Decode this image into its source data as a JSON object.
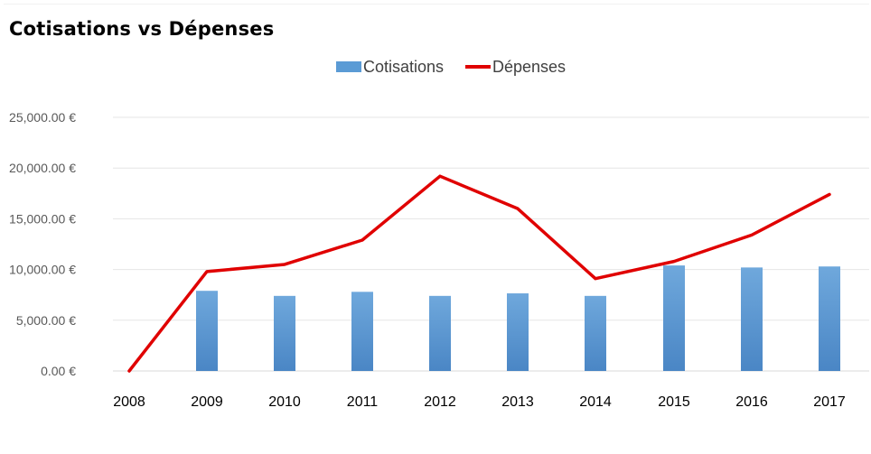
{
  "chart_data": {
    "type": "bar",
    "title": "Cotisations vs Dépenses",
    "categories": [
      "2008",
      "2009",
      "2010",
      "2011",
      "2012",
      "2013",
      "2014",
      "2015",
      "2016",
      "2017"
    ],
    "series": [
      {
        "name": "Cotisations",
        "type": "bar",
        "color": "#5b9bd5",
        "values": [
          0,
          7900,
          7400,
          7800,
          7400,
          7650,
          7400,
          10400,
          10200,
          10300
        ]
      },
      {
        "name": "Dépenses",
        "type": "line",
        "color": "#e00000",
        "values": [
          0,
          9800,
          10500,
          12900,
          19200,
          16000,
          9100,
          10800,
          13400,
          17400
        ]
      }
    ],
    "ylim": [
      0,
      25000
    ],
    "yticks": [
      {
        "value": 0,
        "label": "0.00 €"
      },
      {
        "value": 5000,
        "label": "5,000.00 €"
      },
      {
        "value": 10000,
        "label": "10,000.00 €"
      },
      {
        "value": 15000,
        "label": "15,000.00 €"
      },
      {
        "value": 20000,
        "label": "20,000.00 €"
      },
      {
        "value": 25000,
        "label": "25,000.00 €"
      }
    ],
    "xlabel": "",
    "ylabel": "",
    "grid": true,
    "legend_position": "top-center"
  }
}
